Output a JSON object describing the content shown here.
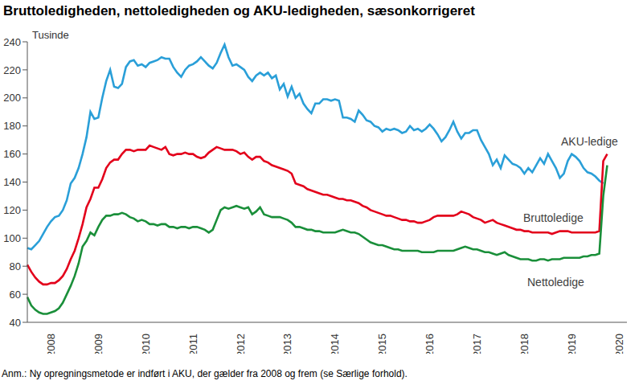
{
  "chart_data": {
    "type": "line",
    "title": "Bruttoledigheden, nettoledigheden og AKU-ledigheden, sæsonkorrigeret",
    "ylabel": "Tusinde",
    "note": "Anm.: Ny opregningsmetode er indført i AKU, der gælder fra 2008 og frem (se Særlige forhold).",
    "grid": false,
    "ylim": [
      40,
      240
    ],
    "yticks": [
      40,
      60,
      80,
      100,
      120,
      140,
      160,
      180,
      200,
      220,
      240
    ],
    "categories": [
      null,
      null,
      null,
      null,
      null,
      null,
      "2008",
      null,
      null,
      null,
      null,
      null,
      null,
      null,
      null,
      null,
      null,
      null,
      "2009",
      null,
      null,
      null,
      null,
      null,
      null,
      null,
      null,
      null,
      null,
      null,
      "2010",
      null,
      null,
      null,
      null,
      null,
      null,
      null,
      null,
      null,
      null,
      null,
      "2011",
      null,
      null,
      null,
      null,
      null,
      null,
      null,
      null,
      null,
      null,
      null,
      "2012",
      null,
      null,
      null,
      null,
      null,
      null,
      null,
      null,
      null,
      null,
      null,
      "2013",
      null,
      null,
      null,
      null,
      null,
      null,
      null,
      null,
      null,
      null,
      null,
      "2014",
      null,
      null,
      null,
      null,
      null,
      null,
      null,
      null,
      null,
      null,
      null,
      "2015",
      null,
      null,
      null,
      null,
      null,
      null,
      null,
      null,
      null,
      null,
      null,
      "2016",
      null,
      null,
      null,
      null,
      null,
      null,
      null,
      null,
      null,
      null,
      null,
      "2017",
      null,
      null,
      null,
      null,
      null,
      null,
      null,
      null,
      null,
      null,
      null,
      "2018",
      null,
      null,
      null,
      null,
      null,
      null,
      null,
      null,
      null,
      null,
      null,
      "2019",
      null,
      null,
      null,
      null,
      null,
      null,
      null,
      null,
      null,
      null,
      null,
      "2020",
      null,
      null
    ],
    "series": [
      {
        "name": "AKU-ledige",
        "color": "#2a9fd8",
        "values": [
          93,
          92,
          95,
          98,
          103,
          108,
          112,
          115,
          116,
          120,
          127,
          139,
          143,
          150,
          160,
          172,
          190,
          185,
          186,
          200,
          212,
          220,
          208,
          207,
          210,
          222,
          226,
          227,
          223,
          224,
          222,
          225,
          226,
          227,
          229,
          228,
          228,
          222,
          218,
          215,
          220,
          223,
          224,
          226,
          229,
          226,
          223,
          221,
          225,
          232,
          238,
          229,
          223,
          224,
          222,
          220,
          215,
          212,
          216,
          218,
          216,
          218,
          214,
          216,
          206,
          210,
          201,
          208,
          200,
          203,
          196,
          192,
          189,
          196,
          196,
          199,
          199,
          198,
          199,
          198,
          186,
          186,
          185,
          183,
          191,
          188,
          184,
          183,
          180,
          179,
          176,
          178,
          177,
          178,
          177,
          175,
          176,
          180,
          177,
          178,
          176,
          178,
          181,
          178,
          174,
          169,
          172,
          177,
          183,
          176,
          171,
          175,
          175,
          177,
          177,
          170,
          165,
          160,
          152,
          156,
          150,
          159,
          156,
          153,
          152,
          150,
          146,
          150,
          147,
          152,
          157,
          153,
          160,
          155,
          150,
          143,
          146,
          155,
          160,
          158,
          155,
          150,
          147,
          146,
          144,
          141,
          139,
          null,
          null,
          null,
          null,
          null,
          null
        ]
      },
      {
        "name": "Bruttoledige",
        "color": "#e3001b",
        "values": [
          81,
          76,
          72,
          69,
          67,
          67,
          68,
          68,
          70,
          73,
          78,
          85,
          91,
          100,
          110,
          122,
          128,
          136,
          136,
          142,
          150,
          154,
          156,
          156,
          160,
          163,
          163,
          162,
          163,
          163,
          163,
          166,
          165,
          164,
          163,
          165,
          160,
          159,
          160,
          160,
          161,
          160,
          160,
          158,
          157,
          158,
          161,
          163,
          165,
          164,
          163,
          163,
          163,
          162,
          160,
          161,
          158,
          156,
          158,
          158,
          155,
          154,
          152,
          151,
          150,
          149,
          148,
          146,
          139,
          138,
          137,
          135,
          134,
          133,
          132,
          131,
          131,
          130,
          129,
          128,
          128,
          127,
          127,
          126,
          125,
          123,
          122,
          120,
          119,
          118,
          117,
          116,
          116,
          115,
          114,
          113,
          113,
          112,
          112,
          111,
          111,
          112,
          113,
          115,
          116,
          116,
          116,
          116,
          116,
          117,
          119,
          118,
          117,
          115,
          114,
          113,
          111,
          112,
          113,
          111,
          110,
          109,
          108,
          107,
          106,
          106,
          105,
          105,
          104,
          104,
          104,
          104,
          104,
          103,
          104,
          105,
          105,
          105,
          104,
          104,
          104,
          104,
          104,
          104,
          104,
          105,
          155,
          160,
          null,
          null,
          null,
          null,
          null
        ]
      },
      {
        "name": "Nettoledige",
        "color": "#1a8f3a",
        "values": [
          58,
          52,
          49,
          47,
          46,
          46,
          47,
          48,
          50,
          54,
          60,
          66,
          73,
          82,
          94,
          98,
          104,
          102,
          108,
          113,
          116,
          116,
          117,
          117,
          118,
          117,
          115,
          114,
          112,
          113,
          112,
          110,
          110,
          109,
          110,
          110,
          108,
          108,
          107,
          108,
          108,
          107,
          108,
          108,
          107,
          106,
          104,
          106,
          113,
          120,
          122,
          121,
          122,
          123,
          122,
          121,
          122,
          117,
          119,
          122,
          117,
          116,
          115,
          115,
          115,
          114,
          113,
          111,
          108,
          108,
          107,
          106,
          106,
          105,
          105,
          104,
          104,
          104,
          104,
          105,
          106,
          105,
          104,
          104,
          103,
          101,
          99,
          97,
          96,
          95,
          95,
          94,
          93,
          92,
          92,
          91,
          91,
          91,
          91,
          91,
          90,
          90,
          90,
          90,
          91,
          91,
          91,
          91,
          91,
          92,
          93,
          94,
          93,
          92,
          92,
          91,
          90,
          90,
          89,
          88,
          89,
          90,
          88,
          87,
          86,
          85,
          85,
          85,
          84,
          84,
          85,
          85,
          84,
          85,
          85,
          85,
          86,
          86,
          86,
          86,
          86,
          87,
          87,
          88,
          88,
          89,
          130,
          152,
          null,
          null,
          null,
          null,
          null
        ]
      }
    ]
  }
}
